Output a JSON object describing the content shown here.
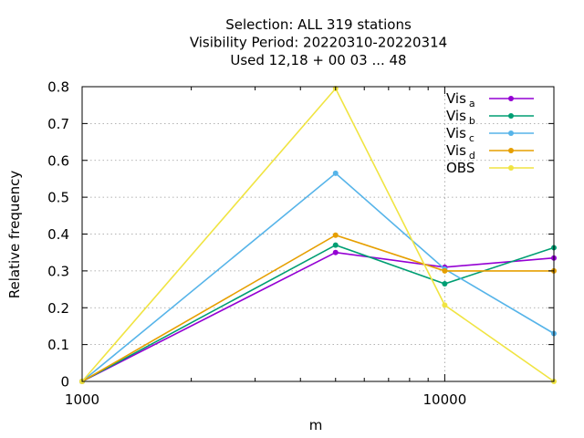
{
  "chart_data": {
    "type": "line",
    "title_lines": [
      "Selection: ALL     319 stations",
      "Visibility  Period: 20220310-20220314",
      "Used  12,18 + 00 03 ... 48"
    ],
    "xlabel": "m",
    "ylabel": "Relative frequency",
    "x_scale": "log",
    "xlim": [
      1000,
      20000
    ],
    "ylim": [
      0,
      0.8
    ],
    "x_ticks": [
      {
        "value": 1000,
        "label": "1000"
      },
      {
        "value": 10000,
        "label": "10000"
      }
    ],
    "y_ticks": [
      0,
      0.1,
      0.2,
      0.3,
      0.4,
      0.5,
      0.6,
      0.7,
      0.8
    ],
    "y_tick_labels": [
      "0",
      "0.1",
      "0.2",
      "0.3",
      "0.4",
      "0.5",
      "0.6",
      "0.7",
      "0.8"
    ],
    "grid": true,
    "legend_position": "top-right",
    "x": [
      1000,
      5000,
      10000,
      20000
    ],
    "series": [
      {
        "name": "Vis",
        "subscript": "a",
        "color": "#9400d3",
        "values": [
          0,
          0.35,
          0.31,
          0.335
        ]
      },
      {
        "name": "Vis",
        "subscript": "b",
        "color": "#009e73",
        "values": [
          0,
          0.37,
          0.265,
          0.363
        ]
      },
      {
        "name": "Vis",
        "subscript": "c",
        "color": "#56b4e9",
        "values": [
          0,
          0.565,
          0.305,
          0.13
        ]
      },
      {
        "name": "Vis",
        "subscript": "d",
        "color": "#e69f00",
        "values": [
          0,
          0.397,
          0.3,
          0.3
        ]
      },
      {
        "name": "OBS",
        "subscript": "",
        "color": "#f0e442",
        "values": [
          0,
          0.795,
          0.207,
          0
        ]
      }
    ]
  }
}
